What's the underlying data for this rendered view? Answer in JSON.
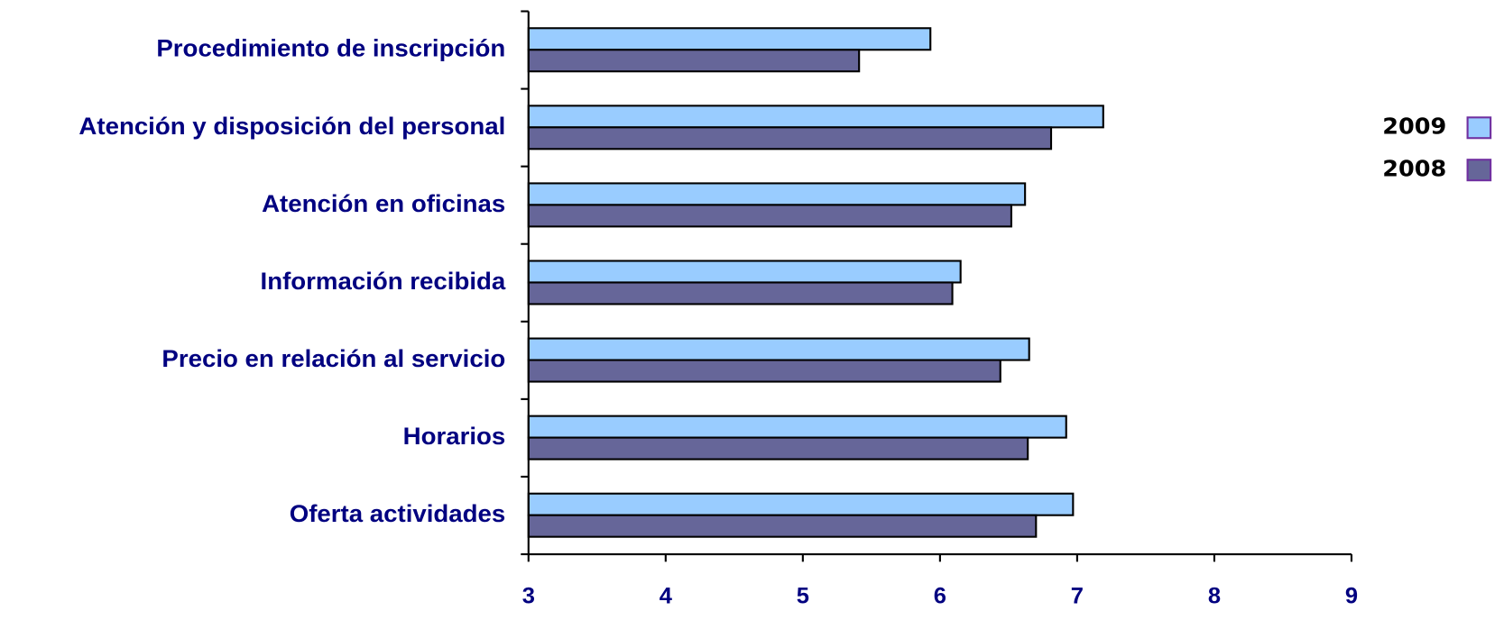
{
  "chart_data": {
    "type": "bar",
    "orientation": "horizontal",
    "categories": [
      "Procedimiento de inscripción",
      "Atención y disposición del personal",
      "Atención en oficinas",
      "Información recibida",
      "Precio en relación al servicio",
      "Horarios",
      "Oferta actividades"
    ],
    "series": [
      {
        "name": "2009",
        "color": "#99ccff",
        "values": [
          5.93,
          7.19,
          6.62,
          6.15,
          6.65,
          6.92,
          6.97
        ]
      },
      {
        "name": "2008",
        "color": "#666699",
        "values": [
          5.41,
          6.81,
          6.52,
          6.09,
          6.44,
          6.64,
          6.7
        ]
      }
    ],
    "xlim": [
      3,
      9
    ],
    "xticks": [
      3,
      4,
      5,
      6,
      7,
      8,
      9
    ],
    "legend": "right"
  }
}
